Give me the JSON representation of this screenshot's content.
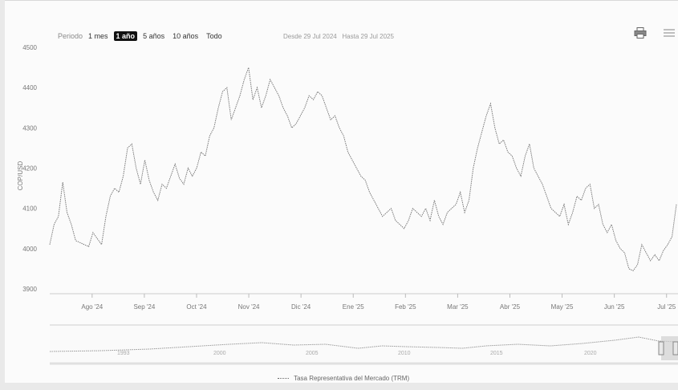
{
  "toolbar": {
    "period_label": "Periodo",
    "buttons": [
      "1 mes",
      "1 año",
      "5 años",
      "10 años",
      "Todo"
    ],
    "active_index": 1,
    "from_label": "Desde",
    "from_value": "29 Jul 2024",
    "to_label": "Hasta",
    "to_value": "29 Jul 2025"
  },
  "icons": {
    "print": "printer-icon",
    "menu": "menu-icon"
  },
  "colors": {
    "line": "#7a7a7a",
    "active_button": "#111111"
  },
  "chart_data": {
    "type": "line",
    "xlabel": "",
    "ylabel": "COP/USD",
    "ylim": [
      3900,
      4500
    ],
    "yticks": [
      3900,
      4000,
      4100,
      4200,
      4300,
      4400,
      4500
    ],
    "x_month_labels": [
      "Ago '24",
      "Sep '24",
      "Oct '24",
      "Nov '24",
      "Dic '24",
      "Ene '25",
      "Feb '25",
      "Mar '25",
      "Abr '25",
      "May '25",
      "Jun '25",
      "Jul '25"
    ],
    "grid": false,
    "series": [
      {
        "name": "Tasa Representativa del Mercado (TRM)",
        "values": [
          4010,
          4060,
          4080,
          4165,
          4090,
          4060,
          4020,
          4015,
          4010,
          4005,
          4040,
          4025,
          4010,
          4080,
          4130,
          4150,
          4140,
          4180,
          4250,
          4260,
          4200,
          4160,
          4220,
          4170,
          4140,
          4120,
          4160,
          4150,
          4180,
          4210,
          4175,
          4160,
          4200,
          4180,
          4200,
          4240,
          4230,
          4280,
          4300,
          4350,
          4390,
          4400,
          4320,
          4350,
          4380,
          4420,
          4450,
          4370,
          4400,
          4350,
          4380,
          4420,
          4400,
          4380,
          4350,
          4330,
          4300,
          4310,
          4330,
          4350,
          4380,
          4370,
          4390,
          4380,
          4350,
          4320,
          4330,
          4300,
          4280,
          4240,
          4220,
          4200,
          4180,
          4170,
          4140,
          4120,
          4100,
          4080,
          4090,
          4100,
          4070,
          4060,
          4050,
          4070,
          4100,
          4090,
          4080,
          4100,
          4070,
          4120,
          4080,
          4060,
          4090,
          4100,
          4110,
          4140,
          4090,
          4120,
          4200,
          4250,
          4290,
          4330,
          4360,
          4300,
          4260,
          4270,
          4240,
          4230,
          4200,
          4180,
          4230,
          4260,
          4200,
          4180,
          4160,
          4130,
          4100,
          4090,
          4080,
          4110,
          4060,
          4090,
          4130,
          4120,
          4150,
          4160,
          4100,
          4110,
          4060,
          4040,
          4060,
          4020,
          4000,
          3990,
          3950,
          3945,
          3960,
          4010,
          3990,
          3970,
          3985,
          3970,
          3995,
          4010,
          4030,
          4110
        ]
      }
    ],
    "navigator_year_labels": [
      "1993",
      "2000",
      "2005",
      "2010",
      "2015",
      "2020"
    ]
  },
  "legend": {
    "label": "Tasa Representativa del Mercado (TRM)"
  }
}
